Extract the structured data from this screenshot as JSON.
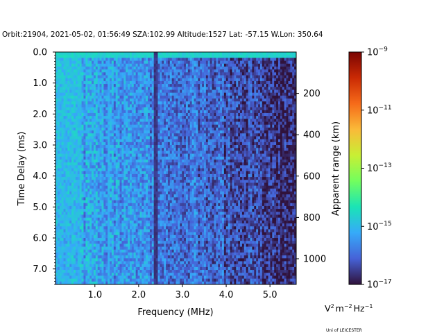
{
  "chart_data": {
    "type": "heatmap",
    "title": "Orbit:21904, 2021-05-02, 01:56:49 SZA:102.99 Altitude:1527 Lat: -57.15 W.Lon: 350.64",
    "xlabel": "Frequency (MHz)",
    "ylabel": "Time Delay (ms)",
    "y2label": "Apparent range (km)",
    "xlim": [
      0.1,
      5.6
    ],
    "ylim": [
      7.5,
      0.0
    ],
    "x_ticks": [
      1.0,
      2.0,
      3.0,
      4.0,
      5.0
    ],
    "x_tick_labels": [
      "1.0",
      "2.0",
      "3.0",
      "4.0",
      "5.0"
    ],
    "y_ticks": [
      0.0,
      1.0,
      2.0,
      3.0,
      4.0,
      5.0,
      6.0,
      7.0
    ],
    "y_tick_labels": [
      "0.0",
      "1.0",
      "2.0",
      "3.0",
      "4.0",
      "5.0",
      "6.0",
      "7.0"
    ],
    "range_ticks_km": [
      200,
      400,
      600,
      800,
      1000
    ],
    "range_tick_labels": [
      "200",
      "400",
      "600",
      "800",
      "1000"
    ],
    "km_per_ms": 149.9,
    "colorbar": {
      "scale": "log",
      "min_exp": -17,
      "max_exp": -9,
      "tick_exps": [
        -17,
        -15,
        -13,
        -11,
        -9
      ],
      "base": "10",
      "units": "V",
      "units_rest": "m",
      "units_tail": "Hz"
    },
    "colorscale": [
      "#30123b",
      "#4662d7",
      "#36aaf9",
      "#1ae4b6",
      "#72fe5e",
      "#c8ef34",
      "#faba39",
      "#f66b19",
      "#ca2a04",
      "#7a0403"
    ],
    "grid": {
      "freq_bins": 120,
      "delay_bins": 80,
      "noise_level_exp_low_freq": -15.3,
      "noise_level_exp_high_freq": -16.8,
      "surface_echo_delay_ms": 0.09,
      "surface_echo_exp": -14.6,
      "low_freq_echo_max_freq": 0.7,
      "low_freq_echo_exp": -14.9,
      "interference_lines_mhz": [
        2.38,
        2.43
      ],
      "interference_exp": -16.6,
      "bright_line_mhz": [
        1.33
      ],
      "bright_line_exp": -15.2
    },
    "credit": "Uni of LEICESTER"
  }
}
